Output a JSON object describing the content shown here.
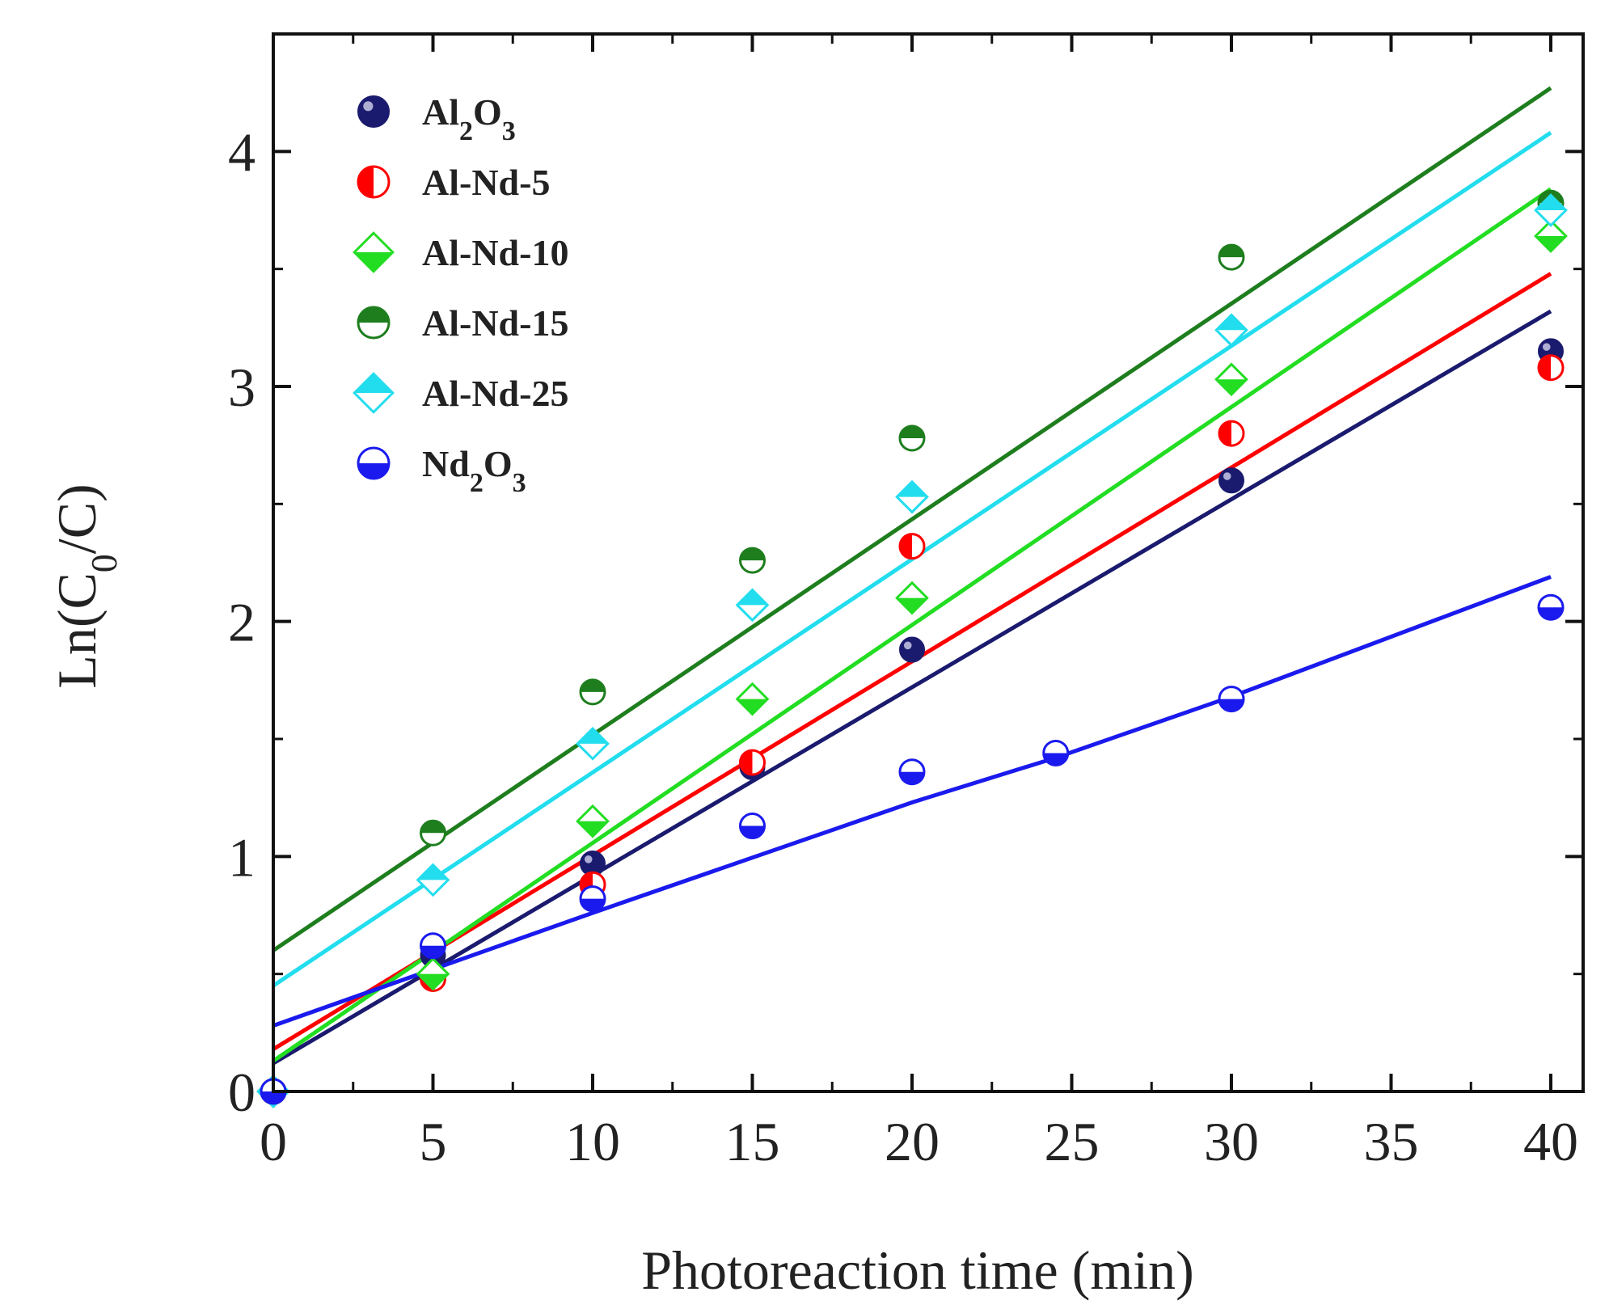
{
  "chart_data": {
    "type": "scatter",
    "title": "",
    "xlabel": "Photoreaction time (min)",
    "ylabel": "Ln(C0/C)",
    "ylabel_parts": {
      "prefix": "Ln(C",
      "sub": "0",
      "suffix": "/C)"
    },
    "xlim": [
      0,
      41
    ],
    "ylim": [
      0,
      4.5
    ],
    "x_ticks": [
      0,
      5,
      10,
      15,
      20,
      25,
      30,
      35,
      40
    ],
    "y_ticks": [
      0,
      1,
      2,
      3,
      4
    ],
    "x_minor_step": 2.5,
    "y_minor_step": 0.5,
    "grid": false,
    "legend_position": "top-left",
    "series": [
      {
        "name": "Al2O3",
        "label_parts": [
          [
            "Al",
            ""
          ],
          [
            "2",
            "sub"
          ],
          [
            "O",
            ""
          ],
          [
            "3",
            "sub"
          ]
        ],
        "color": "#1a1a6e",
        "marker": "sphere",
        "x": [
          0,
          5,
          10,
          15,
          20,
          30,
          40
        ],
        "y": [
          0.0,
          0.58,
          0.97,
          1.38,
          1.88,
          2.6,
          3.15
        ],
        "fit": [
          0.12,
          3.32
        ]
      },
      {
        "name": "Al-Nd-5",
        "label_parts": [
          [
            "Al-Nd-5",
            ""
          ]
        ],
        "color": "#ff0000",
        "marker": "half-circle-left",
        "x": [
          0,
          5,
          10,
          15,
          20,
          30,
          40
        ],
        "y": [
          0.0,
          0.48,
          0.88,
          1.4,
          2.32,
          2.8,
          3.08
        ],
        "fit": [
          0.18,
          3.48
        ]
      },
      {
        "name": "Al-Nd-10",
        "label_parts": [
          [
            "Al-Nd-10",
            ""
          ]
        ],
        "color": "#22dd22",
        "marker": "half-diamond-bottom",
        "x": [
          0,
          5,
          10,
          15,
          20,
          30,
          40
        ],
        "y": [
          0.0,
          0.5,
          1.15,
          1.67,
          2.1,
          3.03,
          3.64
        ],
        "fit": [
          0.13,
          3.84
        ]
      },
      {
        "name": "Al-Nd-15",
        "label_parts": [
          [
            "Al-Nd-15",
            ""
          ]
        ],
        "color": "#1e7e1e",
        "marker": "half-circle-top",
        "x": [
          0,
          5,
          10,
          15,
          20,
          30,
          40
        ],
        "y": [
          0.0,
          1.1,
          1.7,
          2.26,
          2.78,
          3.55,
          3.78
        ],
        "fit": [
          0.6,
          4.27
        ]
      },
      {
        "name": "Al-Nd-25",
        "label_parts": [
          [
            "Al-Nd-25",
            ""
          ]
        ],
        "color": "#22ddee",
        "marker": "half-diamond-top",
        "x": [
          0,
          5,
          10,
          15,
          20,
          30,
          40
        ],
        "y": [
          0.0,
          0.9,
          1.48,
          2.07,
          2.53,
          3.24,
          3.75
        ],
        "fit": [
          0.45,
          4.08
        ]
      },
      {
        "name": "Nd2O3",
        "label_parts": [
          [
            "Nd",
            ""
          ],
          [
            "2",
            "sub"
          ],
          [
            "O",
            ""
          ],
          [
            "3",
            "sub"
          ]
        ],
        "color": "#1a1aee",
        "marker": "half-circle-bottom",
        "x": [
          0,
          5,
          10,
          15,
          20,
          24.5,
          30,
          40
        ],
        "y": [
          0.0,
          0.62,
          0.82,
          1.13,
          1.36,
          1.44,
          1.67,
          2.06
        ],
        "fit_polyline": [
          [
            0,
            0.28
          ],
          [
            10,
            0.76
          ],
          [
            20,
            1.23
          ],
          [
            24.5,
            1.42
          ],
          [
            30,
            1.68
          ],
          [
            40,
            2.19
          ]
        ]
      }
    ]
  }
}
